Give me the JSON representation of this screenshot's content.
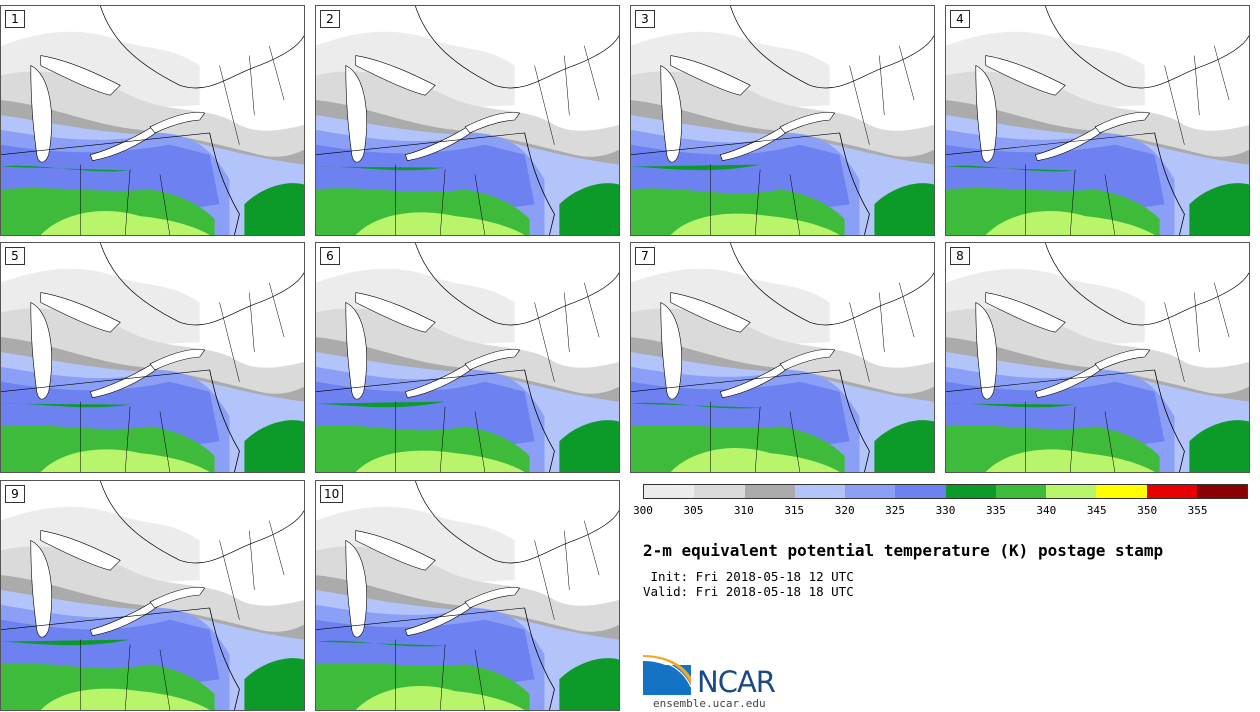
{
  "panels": [
    {
      "label": "1"
    },
    {
      "label": "2"
    },
    {
      "label": "3"
    },
    {
      "label": "4"
    },
    {
      "label": "5"
    },
    {
      "label": "6"
    },
    {
      "label": "7"
    },
    {
      "label": "8"
    },
    {
      "label": "9"
    },
    {
      "label": "10"
    }
  ],
  "colorbar": {
    "ticks": [
      "300",
      "305",
      "310",
      "315",
      "320",
      "325",
      "330",
      "335",
      "340",
      "345",
      "350",
      "355"
    ],
    "colors": [
      "#ececec",
      "#dadada",
      "#ababab",
      "#b3c4fb",
      "#8a9ff5",
      "#6d81f0",
      "#0c9a28",
      "#3fbb3c",
      "#b8f56a",
      "#ffff00",
      "#e60000",
      "#8b0000"
    ]
  },
  "title": "2-m equivalent potential temperature (K) postage stamp",
  "init": " Init: Fri 2018-05-18 12 UTC",
  "valid": "Valid: Fri 2018-05-18 18 UTC",
  "logo_text": "NCAR",
  "url": "ensemble.ucar.edu"
}
